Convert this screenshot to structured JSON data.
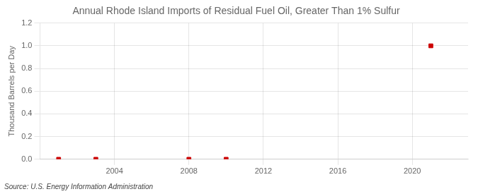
{
  "chart_data": {
    "type": "scatter",
    "title": "Annual Rhode Island Imports of Residual Fuel Oil, Greater Than 1% Sulfur",
    "ylabel": "Thousand Barrels per Day",
    "annotation": "Source: U.S. Energy Information Administration",
    "x": [
      2001,
      2003,
      2008,
      2010,
      2021
    ],
    "values": [
      0.0,
      0.0,
      0.0,
      0.0,
      1.0
    ],
    "color": "#cc0000",
    "marker": "square",
    "xlim": [
      2000,
      2023
    ],
    "xticks": [
      2004,
      2008,
      2012,
      2016,
      2020
    ],
    "ylim": [
      0.0,
      1.2
    ],
    "yticks": [
      {
        "value": 0.0,
        "label": "0.0"
      },
      0.2,
      0.4,
      0.6,
      0.8,
      {
        "value": 1.0,
        "label": "1.0"
      },
      1.2
    ],
    "grid": true
  }
}
